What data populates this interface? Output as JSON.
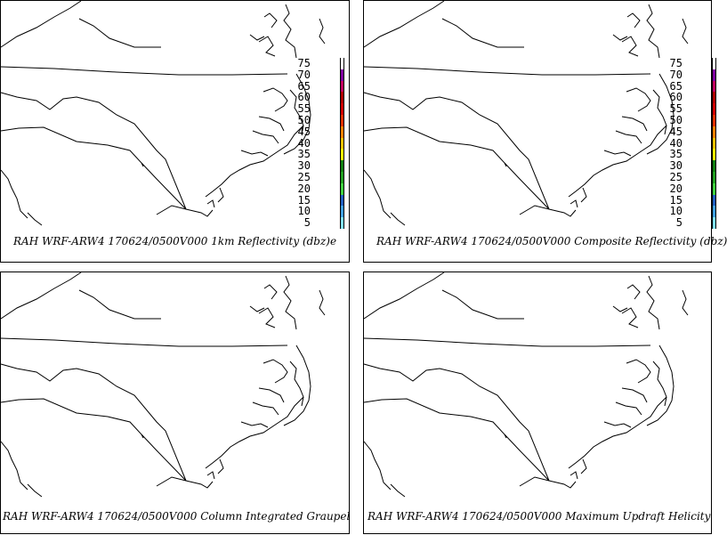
{
  "panels": [
    {
      "id": "p1",
      "caption": "RAH WRF-ARW4 170624/0500V000  1km Reflectivity (dbz)e",
      "has_legend": true
    },
    {
      "id": "p2",
      "caption": "RAH WRF-ARW4 170624/0500V000  Composite Reflectivity (dbz)",
      "has_legend": true
    },
    {
      "id": "p3",
      "caption": "RAH WRF-ARW4 170624/0500V000  Column Integrated Graupel",
      "has_legend": false
    },
    {
      "id": "p4",
      "caption": "RAH WRF-ARW4 170624/0500V000  Maximum Updraft Helicity",
      "has_legend": false
    }
  ],
  "legend": {
    "levels": [
      "75",
      "70",
      "65",
      "60",
      "55",
      "50",
      "45",
      "40",
      "35",
      "30",
      "25",
      "20",
      "15",
      "10",
      "5"
    ],
    "colors": [
      "#ffffff",
      "#8000a0",
      "#c00060",
      "#b00000",
      "#d00000",
      "#e03000",
      "#f08000",
      "#e8c000",
      "#f0f000",
      "#108010",
      "#20a020",
      "#40d040",
      "#2060c0",
      "#40a0e0",
      "#80e0f0"
    ]
  }
}
